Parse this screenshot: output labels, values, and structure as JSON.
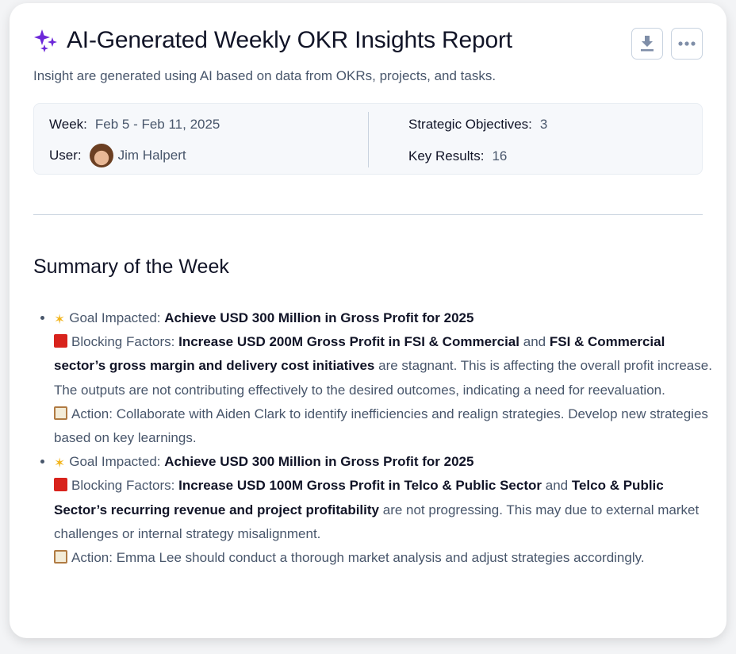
{
  "header": {
    "title": "AI-Generated Weekly OKR Insights Report",
    "subtitle": "Insight are generated using AI based on data from OKRs, projects, and tasks.",
    "accent": "#6d28d9"
  },
  "toolbar": {
    "download_icon": "download-icon",
    "more_icon": "more-horizontal-icon"
  },
  "meta": {
    "week_label": "Week:",
    "week_value": "Feb 5 - Feb 11, 2025",
    "user_label": "User:",
    "user_value": "Jim Halpert",
    "objectives_label": "Strategic Objectives:",
    "objectives_value": "3",
    "kr_label": "Key Results:",
    "kr_value": "16"
  },
  "summary": {
    "heading": "Summary of the Week",
    "items": [
      {
        "goal_label": "Goal Impacted:",
        "goal": "Achieve USD 300 Million in Gross Profit for 2025",
        "blocking_label": "Blocking Factors:",
        "kr1": "Increase USD 200M Gross Profit in FSI & Commercial",
        "and": "and",
        "kr2": "FSI & Commercial sector’s gross margin and delivery cost initiatives",
        "blocking_text": "are stagnant. This is affecting the overall profit increase. The outputs are not contributing effectively to the desired outcomes, indicating a need for reevaluation.",
        "action": "Action: Collaborate with Aiden Clark to identify inefficiencies and realign strategies. Develop new strategies based on key learnings."
      },
      {
        "goal_label": "Goal Impacted:",
        "goal": "Achieve USD 300 Million in Gross Profit for 2025",
        "blocking_label": "Blocking Factors:",
        "kr1": "Increase USD 100M Gross Profit in Telco & Public Sector",
        "and": "and",
        "kr2": "Telco & Public Sector’s recurring revenue and project profitability",
        "blocking_text": "are not progressing. This may due to external market challenges or internal strategy misalignment.",
        "action": "Action: Emma Lee should conduct a thorough market analysis and adjust strategies accordingly."
      }
    ]
  }
}
